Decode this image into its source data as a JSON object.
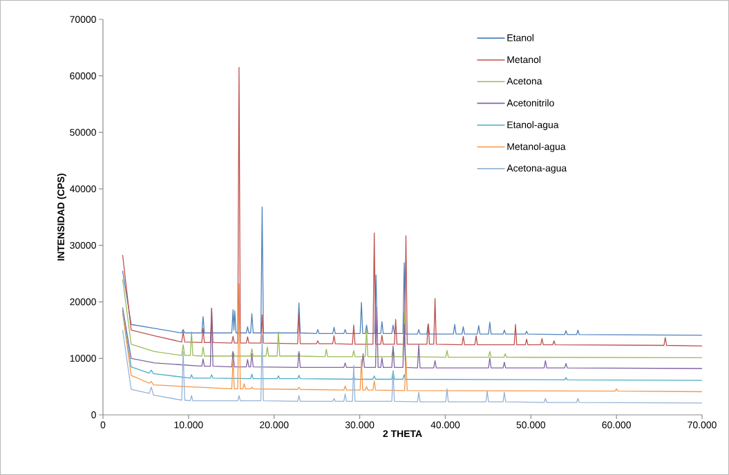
{
  "chart_data": {
    "type": "line",
    "xlabel": "2 THETA",
    "ylabel": "INTENSIDAD (CPS)",
    "xlim": [
      0,
      70000
    ],
    "ylim": [
      0,
      70000
    ],
    "xticks": [
      0,
      {
        "value": 10000,
        "label": "10.000"
      },
      {
        "value": 20000,
        "label": "20.000"
      },
      {
        "value": 30000,
        "label": "30.000"
      },
      {
        "value": 40000,
        "label": "40.000"
      },
      {
        "value": 50000,
        "label": "50.000"
      },
      {
        "value": 60000,
        "label": "60.000"
      },
      {
        "value": 70000,
        "label": "70.000"
      }
    ],
    "yticks": [
      0,
      10000,
      20000,
      30000,
      40000,
      50000,
      60000,
      70000
    ],
    "grid": false,
    "legend": "top right",
    "marker": "none",
    "line_style": "solid",
    "series": [
      {
        "name": "Etanol",
        "color": "#4f81bd",
        "x": [
          2300,
          3300,
          6000,
          9200,
          9370,
          9550,
          11550,
          11700,
          11850,
          15050,
          15200,
          15300,
          15400,
          15550,
          16750,
          16900,
          17050,
          17250,
          17400,
          17550,
          18450,
          18600,
          18750,
          22750,
          22900,
          23050,
          24950,
          25100,
          25250,
          26850,
          27000,
          27150,
          28150,
          28300,
          28450,
          30050,
          30200,
          30350,
          30650,
          30800,
          30950,
          31750,
          31900,
          32050,
          32450,
          32600,
          32750,
          33750,
          33900,
          34050,
          35050,
          35200,
          35350,
          36750,
          36900,
          37050,
          37850,
          38000,
          38150,
          40950,
          41100,
          41250,
          41950,
          42100,
          42250,
          43750,
          43900,
          44050,
          45050,
          45200,
          45350,
          46750,
          46900,
          47050,
          49350,
          49500,
          49650,
          53950,
          54100,
          54250,
          55350,
          55500,
          55650,
          70000
        ],
        "values": [
          25500,
          16000,
          15300,
          14500,
          15100,
          14500,
          14500,
          17400,
          14500,
          14500,
          18600,
          15000,
          18400,
          14500,
          14500,
          15600,
          14500,
          14500,
          17900,
          14500,
          14500,
          36800,
          14500,
          14500,
          19800,
          14500,
          14400,
          15100,
          14400,
          14400,
          15500,
          14400,
          14400,
          15100,
          14400,
          14400,
          19900,
          14400,
          14400,
          15900,
          14400,
          14400,
          24800,
          14400,
          14400,
          16500,
          14400,
          14400,
          15900,
          14400,
          14400,
          26900,
          14300,
          14300,
          15100,
          14300,
          14300,
          16100,
          14300,
          14300,
          16000,
          14300,
          14300,
          15600,
          14300,
          14300,
          15800,
          14300,
          14300,
          16400,
          14300,
          14300,
          15000,
          14300,
          14300,
          14800,
          14300,
          14200,
          14900,
          14200,
          14200,
          15000,
          14200,
          14100
        ]
      },
      {
        "name": "Metanol",
        "color": "#c0504d",
        "x": [
          2300,
          3300,
          6000,
          9200,
          9370,
          9550,
          11550,
          11700,
          11850,
          12550,
          12700,
          12850,
          15050,
          15200,
          15350,
          15750,
          15900,
          16050,
          16750,
          16900,
          17050,
          18450,
          18600,
          18750,
          22750,
          22900,
          23050,
          24950,
          25100,
          25250,
          26850,
          27000,
          27150,
          29150,
          29300,
          29450,
          31550,
          31700,
          31850,
          32450,
          32600,
          32750,
          34050,
          34200,
          34350,
          35250,
          35400,
          35550,
          37850,
          38000,
          38150,
          38650,
          38800,
          38950,
          41950,
          42100,
          42250,
          43450,
          43600,
          43750,
          48050,
          48200,
          48350,
          49350,
          49500,
          49650,
          51150,
          51300,
          51450,
          52550,
          52700,
          52850,
          65550,
          65700,
          65850,
          70000
        ],
        "values": [
          28300,
          15000,
          14000,
          12900,
          14700,
          12900,
          12800,
          15300,
          12800,
          12800,
          18900,
          12800,
          12700,
          13900,
          12700,
          12700,
          61500,
          12700,
          12700,
          13800,
          12700,
          12700,
          17700,
          12700,
          12600,
          17900,
          12600,
          12600,
          13100,
          12600,
          12600,
          14000,
          12600,
          12500,
          15900,
          12500,
          12500,
          32200,
          12500,
          12500,
          14100,
          12500,
          12500,
          16900,
          12500,
          12500,
          31700,
          12500,
          12500,
          16100,
          12500,
          12500,
          20600,
          12500,
          12400,
          13900,
          12400,
          12400,
          14000,
          12400,
          12400,
          16000,
          12400,
          12400,
          13400,
          12400,
          12400,
          13500,
          12400,
          12400,
          13100,
          12400,
          12300,
          13700,
          12300,
          12200
        ]
      },
      {
        "name": "Acetona",
        "color": "#9bbb59",
        "x": [
          2300,
          3300,
          6000,
          9200,
          9370,
          9550,
          10200,
          10350,
          10500,
          11550,
          11700,
          11850,
          15050,
          15200,
          15350,
          17250,
          17400,
          17550,
          19050,
          19200,
          19350,
          20350,
          20500,
          20650,
          22750,
          22900,
          23050,
          25950,
          26100,
          26250,
          29150,
          29300,
          29450,
          30650,
          30800,
          30950,
          33750,
          33900,
          34050,
          35050,
          35200,
          35350,
          40050,
          40200,
          40350,
          45050,
          45200,
          45350,
          46850,
          47000,
          47150,
          70000
        ],
        "values": [
          24000,
          12500,
          11200,
          10500,
          12400,
          10500,
          10500,
          14700,
          10500,
          10400,
          12000,
          10400,
          10400,
          11200,
          10400,
          10400,
          11700,
          10400,
          10400,
          12000,
          10400,
          10400,
          14700,
          10400,
          10400,
          11000,
          10400,
          10300,
          11600,
          10300,
          10300,
          11400,
          10300,
          10300,
          15100,
          10300,
          10300,
          11800,
          10300,
          10300,
          18200,
          10300,
          10200,
          11400,
          10200,
          10200,
          11200,
          10200,
          10200,
          10800,
          10200,
          10100
        ]
      },
      {
        "name": "Acetonitrilo",
        "color": "#8064a2",
        "x": [
          2300,
          3300,
          6000,
          11550,
          11700,
          11850,
          12550,
          12700,
          12850,
          15050,
          15200,
          15350,
          16750,
          16900,
          17050,
          17250,
          17400,
          17550,
          22750,
          22900,
          23050,
          28150,
          28300,
          28450,
          30250,
          30400,
          30550,
          31850,
          32000,
          32150,
          32450,
          32600,
          32750,
          33750,
          33900,
          34050,
          35050,
          35200,
          35350,
          36750,
          36900,
          37050,
          38650,
          38800,
          38950,
          45050,
          45200,
          45350,
          46750,
          46900,
          47050,
          51550,
          51700,
          51850,
          53950,
          54100,
          54250,
          70000
        ],
        "values": [
          19000,
          10000,
          9200,
          8600,
          9900,
          8600,
          8600,
          18800,
          8600,
          8500,
          11200,
          8500,
          8500,
          9800,
          8500,
          8500,
          10800,
          8500,
          8400,
          11200,
          8400,
          8400,
          9200,
          8400,
          8400,
          10800,
          8400,
          8400,
          19000,
          8400,
          8400,
          10100,
          8400,
          8400,
          12200,
          8400,
          8400,
          16000,
          8400,
          8300,
          12400,
          8300,
          8300,
          9600,
          8300,
          8300,
          10100,
          8300,
          8300,
          9300,
          8300,
          8300,
          9600,
          8300,
          8300,
          9100,
          8300,
          8200
        ]
      },
      {
        "name": "Etanol-agua",
        "color": "#4bacc6",
        "x": [
          2300,
          3300,
          5400,
          5650,
          5900,
          10200,
          10350,
          10500,
          12550,
          12700,
          12850,
          17250,
          17400,
          17550,
          20350,
          20500,
          20650,
          22750,
          22900,
          23050,
          29150,
          29300,
          29450,
          31550,
          31700,
          31850,
          33750,
          33900,
          34050,
          35050,
          35200,
          35350,
          53950,
          54100,
          54250,
          70000
        ],
        "values": [
          18500,
          8500,
          7400,
          7900,
          7300,
          6500,
          7100,
          6500,
          6500,
          7100,
          6500,
          6400,
          7200,
          6400,
          6400,
          6900,
          6400,
          6400,
          7000,
          6400,
          6300,
          6700,
          6300,
          6300,
          6900,
          6300,
          6300,
          7800,
          6300,
          6300,
          7100,
          6300,
          6200,
          6600,
          6200,
          6100
        ]
      },
      {
        "name": "Metanol-agua",
        "color": "#f79646",
        "x": [
          2300,
          3300,
          5400,
          5650,
          5900,
          15050,
          15200,
          15350,
          15750,
          15900,
          16050,
          16350,
          16500,
          16650,
          17250,
          17400,
          17550,
          22750,
          22900,
          23050,
          28150,
          28300,
          28450,
          30050,
          30200,
          30350,
          30650,
          30800,
          30950,
          31550,
          31700,
          31850,
          35250,
          35400,
          35550,
          59850,
          60000,
          60150,
          70000
        ],
        "values": [
          18000,
          7000,
          5600,
          5900,
          5300,
          4600,
          9800,
          4600,
          4600,
          23200,
          4600,
          4600,
          5500,
          4600,
          4600,
          4900,
          4600,
          4500,
          4900,
          4500,
          4400,
          5100,
          4400,
          4400,
          9800,
          4400,
          4400,
          5000,
          4400,
          4400,
          6000,
          4400,
          4300,
          10100,
          4300,
          4200,
          4600,
          4200,
          4100
        ]
      },
      {
        "name": "Acetona-agua",
        "color": "#95b3d7",
        "x": [
          2300,
          3300,
          5400,
          5650,
          5900,
          9200,
          9370,
          9550,
          10200,
          10350,
          10500,
          15750,
          15900,
          16050,
          18450,
          18600,
          18750,
          22750,
          22900,
          23050,
          26850,
          27000,
          27150,
          28150,
          28300,
          28450,
          29150,
          29300,
          29450,
          33750,
          33900,
          34050,
          36750,
          36900,
          37050,
          40050,
          40200,
          40350,
          44750,
          44900,
          45050,
          46750,
          46900,
          47050,
          51550,
          51700,
          51850,
          55350,
          55500,
          55650,
          70000
        ],
        "values": [
          15000,
          4500,
          3800,
          4900,
          3500,
          2600,
          11200,
          2600,
          2500,
          3400,
          2500,
          2500,
          3400,
          2500,
          2500,
          14000,
          2500,
          2400,
          3400,
          2400,
          2400,
          2900,
          2400,
          2400,
          3700,
          2400,
          2400,
          8800,
          2400,
          2400,
          7800,
          2400,
          2300,
          4000,
          2300,
          2300,
          4600,
          2300,
          2300,
          4200,
          2300,
          2300,
          4000,
          2300,
          2200,
          2900,
          2200,
          2200,
          2900,
          2200,
          2100
        ]
      }
    ]
  }
}
